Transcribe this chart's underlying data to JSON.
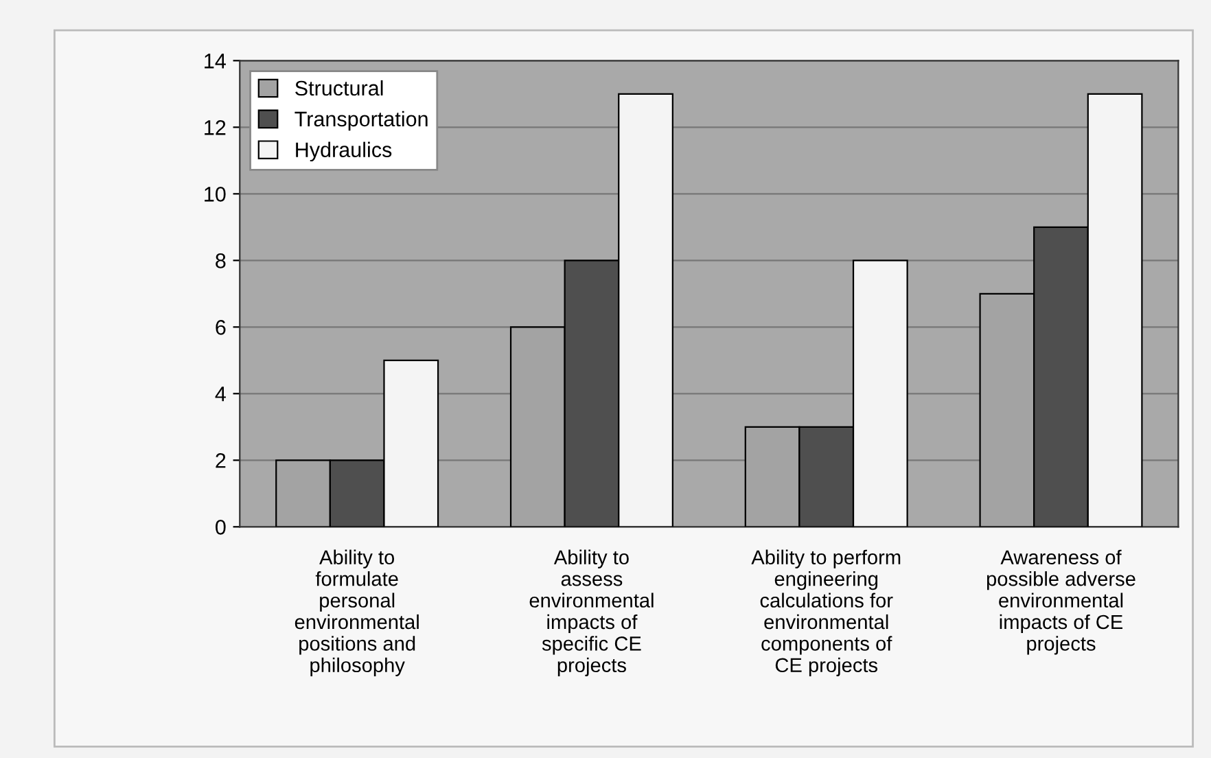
{
  "chart_data": {
    "type": "bar",
    "categories": [
      "Ability to\nformulate\npersonal\nenvironmental\npositions and\nphilosophy",
      "Ability to\nassess\nenvironmental\nimpacts of\nspecific CE\nprojects",
      "Ability to perform\nengineering\ncalculations for\nenvironmental\ncomponents of\nCE projects",
      "Awareness of\npossible adverse\nenvironmental\nimpacts of CE\nprojects"
    ],
    "series": [
      {
        "name": "Structural",
        "color": "#a3a3a3",
        "values": [
          2,
          6,
          3,
          7
        ]
      },
      {
        "name": "Transportation",
        "color": "#4f4f4f",
        "values": [
          2,
          8,
          3,
          9
        ]
      },
      {
        "name": "Hydraulics",
        "color": "#f4f4f4",
        "values": [
          5,
          13,
          8,
          13
        ]
      }
    ],
    "ylim": [
      0,
      14
    ],
    "yticks": [
      0,
      2,
      4,
      6,
      8,
      10,
      12,
      14
    ],
    "grid": "y",
    "legend": "top left"
  }
}
